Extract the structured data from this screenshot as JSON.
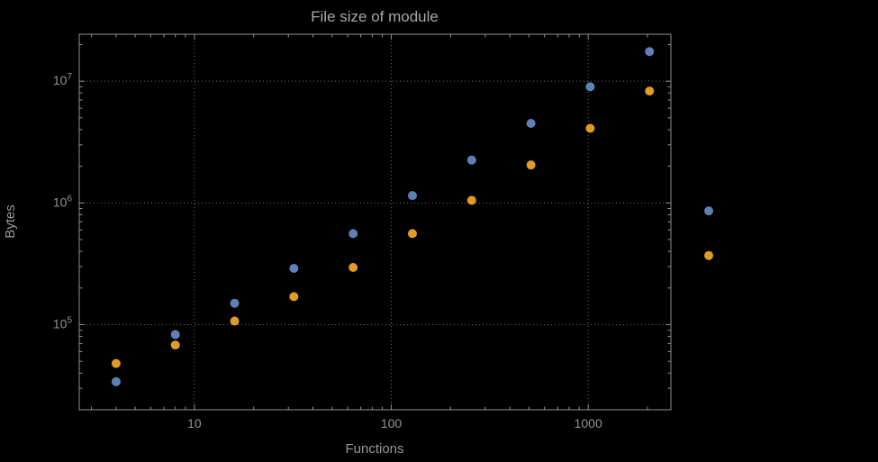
{
  "page": {
    "background": "#000000"
  },
  "chart_data": {
    "type": "scatter",
    "title": "File size of module",
    "xlabel": "Functions",
    "ylabel": "Bytes",
    "x_scale": "log",
    "y_scale": "log",
    "xlim": [
      2.6,
      2630
    ],
    "ylim": [
      20000,
      24300000
    ],
    "grid": "dotted gray lines at decade positions, on",
    "legend": "none",
    "x": [
      4,
      8,
      16,
      32,
      64,
      128,
      256,
      512,
      1024,
      2048,
      4096
    ],
    "series": [
      {
        "name": "blue-series",
        "color": "#5E81B5",
        "values": [
          34000,
          83000,
          150000,
          290000,
          560000,
          1150000,
          2250000,
          4500000,
          9000000,
          17500000,
          860000
        ]
      },
      {
        "name": "orange-series",
        "color": "#E09C24",
        "values": [
          48000,
          68000,
          107000,
          170000,
          295000,
          560000,
          1050000,
          2050000,
          4100000,
          8300000,
          370000
        ]
      }
    ],
    "x_ticks": [
      {
        "value": 10,
        "label": "10"
      },
      {
        "value": 100,
        "label": "100"
      },
      {
        "value": 1000,
        "label": "1000"
      }
    ],
    "y_ticks": [
      {
        "value": 100000,
        "base": "10",
        "exponent": "5"
      },
      {
        "value": 1000000,
        "base": "10",
        "exponent": "6"
      },
      {
        "value": 10000000,
        "base": "10",
        "exponent": "7"
      }
    ]
  },
  "style": {
    "background": "#000000",
    "title_color": "#a8a8a8",
    "label_color": "#999999",
    "tick_label_color": "#949494",
    "frame_color": "#8f8f8f",
    "grid_color": "#6e6e6e"
  }
}
